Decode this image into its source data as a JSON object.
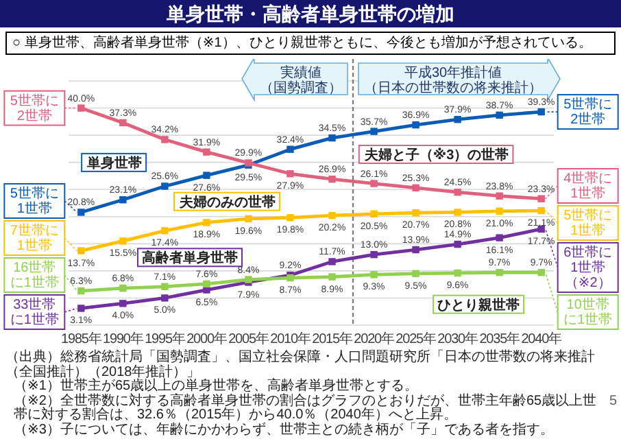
{
  "chart_data": {
    "type": "line",
    "title": "単身世帯・高齢者単身世帯の増加",
    "subtitle": "○ 単身世帯、高齢者単身世帯（※1）、ひとり親世帯ともに、今後とも増加が予想されている。",
    "x": [
      1985,
      1990,
      1995,
      2000,
      2005,
      2010,
      2015,
      2020,
      2025,
      2030,
      2035,
      2040
    ],
    "xlim": [
      1983.5,
      2041.5
    ],
    "xticks": [
      {
        "value": 1985,
        "label": "1985年"
      },
      {
        "value": 1990,
        "label": "1990年"
      },
      {
        "value": 1995,
        "label": "1995年"
      },
      {
        "value": 2000,
        "label": "2000年"
      },
      {
        "value": 2005,
        "label": "2005年"
      },
      {
        "value": 2010,
        "label": "2010年"
      },
      {
        "value": 2015,
        "label": "2015年"
      },
      {
        "value": 2020,
        "label": "2020年"
      },
      {
        "value": 2025,
        "label": "2025年"
      },
      {
        "value": 2030,
        "label": "2030年"
      },
      {
        "value": 2035,
        "label": "2035年"
      },
      {
        "value": 2040,
        "label": "2040年"
      }
    ],
    "ylim": [
      0,
      45
    ],
    "yticks": [
      {
        "value": 0,
        "label": null
      },
      {
        "value": 5,
        "label": null
      },
      {
        "value": 10,
        "label": null
      },
      {
        "value": 15,
        "label": null
      },
      {
        "value": 20,
        "label": null
      },
      {
        "value": 25,
        "label": null
      },
      {
        "value": 30,
        "label": null
      },
      {
        "value": 35,
        "label": null
      },
      {
        "value": 40,
        "label": null
      },
      {
        "value": 45,
        "label": null
      }
    ],
    "tick_labels": "x",
    "grid": "y",
    "marker": "square",
    "series": [
      {
        "name": "単身世帯",
        "color": "#0b5cb8",
        "values": [
          20.8,
          23.1,
          25.6,
          27.6,
          29.5,
          32.4,
          34.5,
          35.7,
          36.9,
          37.9,
          38.7,
          39.3
        ],
        "value_labels": [
          "20.8%",
          "23.1%",
          "25.6%",
          "27.6%",
          "29.5%",
          "32.4%",
          "34.5%",
          "35.7%",
          "36.9%",
          "37.9%",
          "38.7%",
          "39.3%"
        ]
      },
      {
        "name": "夫婦と子（※3）の世帯",
        "color": "#e0607e",
        "values": [
          40.0,
          37.3,
          34.2,
          31.9,
          29.9,
          27.9,
          26.9,
          26.1,
          25.3,
          24.5,
          23.8,
          23.3
        ],
        "value_labels": [
          "40.0%",
          "37.3%",
          "34.2%",
          "31.9%",
          "29.9%",
          "27.9%",
          "26.9%",
          "26.1%",
          "25.3%",
          "24.5%",
          "23.8%",
          "23.3%"
        ]
      },
      {
        "name": "夫婦のみの世帯",
        "color": "#ffc000",
        "values": [
          13.7,
          15.5,
          17.4,
          18.9,
          19.6,
          19.8,
          20.2,
          20.5,
          20.7,
          20.8,
          21.0,
          21.1
        ],
        "value_labels": [
          "13.7%",
          "15.5%",
          "17.4%",
          "18.9%",
          "19.6%",
          "19.8%",
          "20.2%",
          "20.5%",
          "20.7%",
          "20.8%",
          "21.0%",
          "21.1%"
        ]
      },
      {
        "name": "高齢者単身世帯",
        "color": "#7030a0",
        "values": [
          3.1,
          4.0,
          5.0,
          6.5,
          7.9,
          9.2,
          11.7,
          13.0,
          13.9,
          14.9,
          16.1,
          17.7
        ],
        "value_labels": [
          "3.1%",
          "4.0%",
          "5.0%",
          "6.5%",
          "7.9%",
          "9.2%",
          "11.7%",
          "13.0%",
          "13.9%",
          "14.9%",
          "16.1%",
          "17.7%"
        ]
      },
      {
        "name": "ひとり親世帯",
        "color": "#92d050",
        "values": [
          6.3,
          6.8,
          7.1,
          7.6,
          8.4,
          8.7,
          8.9,
          9.3,
          9.5,
          9.6,
          9.7,
          9.7
        ],
        "value_labels": [
          "6.3%",
          "6.8%",
          "7.1%",
          "7.6%",
          "8.4%",
          "8.7%",
          "8.9%",
          "9.3%",
          "9.5%",
          "9.6%",
          "9.7%",
          "9.7%"
        ]
      }
    ],
    "ref_lines": [
      {
        "axis": "x",
        "value": 2017.5,
        "color": "#7f7f7f",
        "line_style": "dashed"
      }
    ],
    "annotations": [
      "実績値（国勢調査）",
      "平成30年推計値（日本の世帯数の将来推計）",
      "5世帯に2世帯",
      "5世帯に1世帯",
      "7世帯に1世帯",
      "16世帯に1世帯",
      "33世帯に1世帯",
      "5世帯に2世帯",
      "4世帯に1世帯",
      "5世帯に1世帯",
      "6世帯に1世帯（※2）",
      "10世帯に1世帯",
      "（出典）総務省統計局「国勢調査」、国立社会保障・人口問題研究所「日本の世帯数の将来推計（全国推計）（2018年推計）」",
      "（※1）世帯主が65歳以上の単身世帯を、高齢者単身世帯とする。",
      "（※2）全世帯数に対する高齢者単身世帯の割合はグラフのとおりだが、世帯主年齢65歳以上世帯に対する割合は、32.6％（2015年）から40.0％（2040年）へと上昇。",
      "（※3）子については、年齢にかかわらず、世帯主との続き柄が「子」である者を指す。",
      "5"
    ]
  }
}
